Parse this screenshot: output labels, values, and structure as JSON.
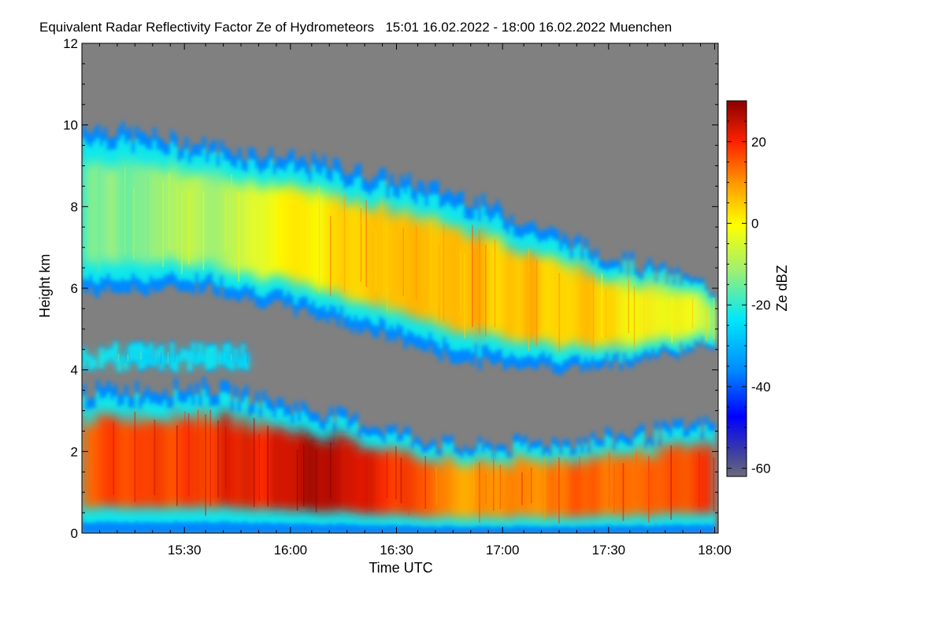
{
  "chart_data": {
    "type": "heatmap",
    "title": "Equivalent Radar Reflectivity Factor Ze of Hydrometeors   15:01 16.02.2022 - 18:00 16.02.2022 Muenchen",
    "xlabel": "Time UTC",
    "ylabel": "Height km",
    "x_ticks": [
      "15:30",
      "16:00",
      "16:30",
      "17:00",
      "17:30",
      "18:00"
    ],
    "x_tick_minutes": [
      29,
      59,
      89,
      119,
      149,
      179
    ],
    "xlim": [
      0,
      180
    ],
    "y_ticks": [
      "0",
      "2",
      "4",
      "6",
      "8",
      "10",
      "12"
    ],
    "ylim": [
      0,
      12
    ],
    "colorbar": {
      "label": "Ze dBZ",
      "range": [
        -62,
        30
      ],
      "ticks": [
        "20",
        "0",
        "-20",
        "-40",
        "-60"
      ],
      "tick_values": [
        20,
        0,
        -20,
        -40,
        -60
      ],
      "no_signal_color": "#808080",
      "colors": [
        "#6a6a7a",
        "#1a1acc",
        "#0000ff",
        "#0088ff",
        "#00e8f8",
        "#ffff00",
        "#ff9900",
        "#ff2200",
        "#8a0000"
      ]
    },
    "features": [
      {
        "label": "upper ice cloud",
        "start_min": 0,
        "end_min": 179,
        "base_km": [
          5.9,
          6.0,
          5.2,
          4.2,
          4.0,
          4.6
        ],
        "top_km": [
          10.0,
          9.5,
          9.0,
          8.3,
          7.0,
          6.0
        ],
        "core_dbz": [
          -15,
          -10,
          5,
          8,
          5,
          -5
        ]
      },
      {
        "label": "thin layer",
        "start_min": 0,
        "end_min": 47,
        "base_km": 4.1,
        "top_km": 4.5,
        "core_dbz": -25
      },
      {
        "label": "lower precipitation",
        "start_min": 0,
        "end_min": 179,
        "base_km": 0,
        "top_km": [
          3.5,
          3.6,
          2.9,
          2.1,
          2.3,
          2.7
        ],
        "core_dbz": [
          15,
          20,
          28,
          10,
          15,
          18
        ]
      }
    ]
  }
}
